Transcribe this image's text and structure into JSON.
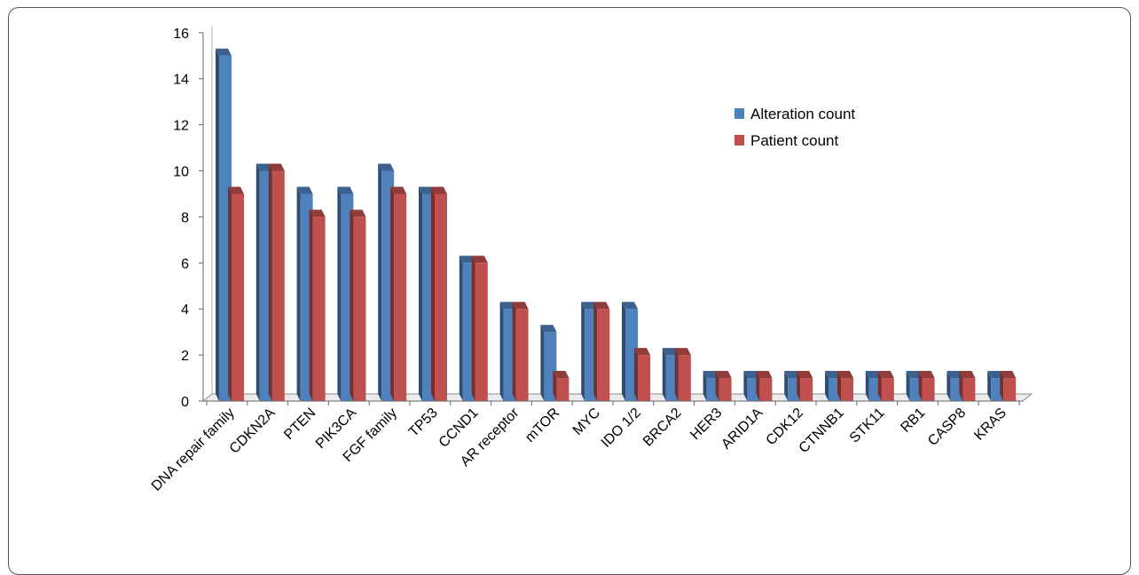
{
  "chart_data": {
    "type": "bar",
    "title": "",
    "xlabel": "",
    "ylabel": "",
    "ylim": [
      0,
      16
    ],
    "yticks": [
      0,
      2,
      4,
      6,
      8,
      10,
      12,
      14,
      16
    ],
    "grid": false,
    "legend_position": "top-right",
    "categories": [
      "DNA repair family",
      "CDKN2A",
      "PTEN",
      "PIK3CA",
      "FGF family",
      "TP53",
      "CCND1",
      "AR receptor",
      "mTOR",
      "MYC",
      "IDO 1/2",
      "BRCA2",
      "HER3",
      "ARID1A",
      "CDK12",
      "CTNNB1",
      "STK11",
      "RB1",
      "CASP8",
      "KRAS"
    ],
    "series": [
      {
        "name": "Alteration count",
        "color": "#4F81BD",
        "values": [
          15,
          10,
          9,
          9,
          10,
          9,
          6,
          4,
          3,
          4,
          4,
          2,
          1,
          1,
          1,
          1,
          1,
          1,
          1,
          1
        ]
      },
      {
        "name": "Patient count",
        "color": "#C0504D",
        "values": [
          9,
          10,
          8,
          8,
          9,
          9,
          6,
          4,
          1,
          4,
          2,
          2,
          1,
          1,
          1,
          1,
          1,
          1,
          1,
          1
        ]
      }
    ]
  }
}
